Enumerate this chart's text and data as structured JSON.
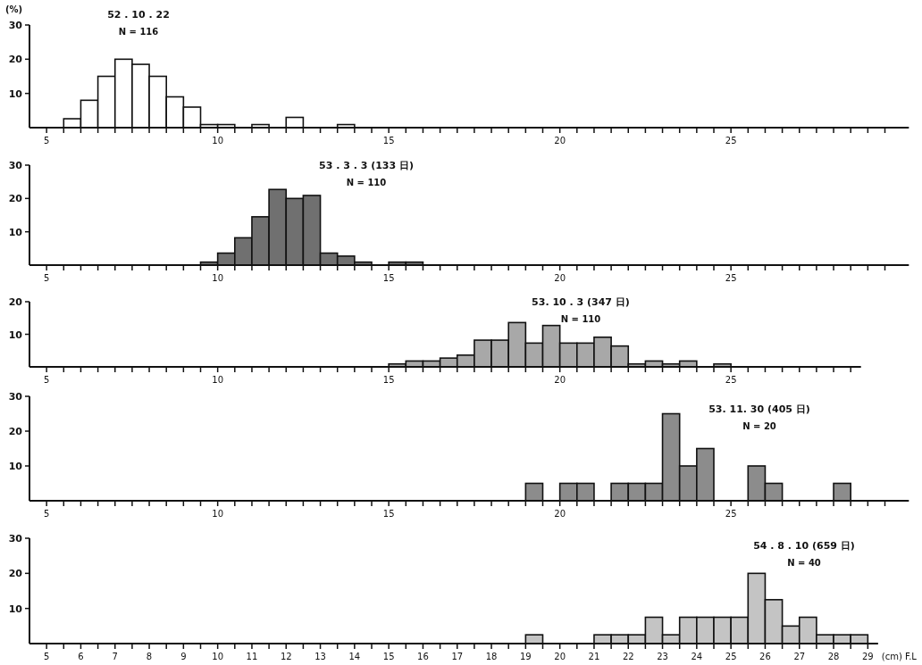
{
  "chart_data": [
    {
      "type": "histogram",
      "title": "52 . 10 . 22",
      "subtitle": "N = 116",
      "ylabel": "(%)",
      "color": "#ffffff",
      "bins": [
        5.5,
        6,
        6.5,
        7,
        7.5,
        8,
        8.5,
        9,
        9.5,
        10,
        10.5,
        11,
        11.5,
        12,
        12.5,
        13.5,
        14
      ],
      "values": [
        2.6,
        8,
        15,
        20,
        18.5,
        15,
        9,
        6,
        0.9,
        0.9,
        0,
        0.9,
        0,
        3,
        0,
        0.9
      ],
      "xlim": [
        4.5,
        30.2
      ],
      "ylim": [
        0,
        30
      ],
      "yticks": [
        10,
        20,
        30
      ],
      "xticks": [
        5,
        {
          "value": 5.5,
          "label": null
        },
        {
          "value": 6,
          "label": null
        },
        {
          "value": 6.5,
          "label": null
        },
        {
          "value": 7,
          "label": null
        },
        {
          "value": 7.5,
          "label": null
        },
        {
          "value": 8,
          "label": null
        },
        {
          "value": 8.5,
          "label": null
        },
        {
          "value": 9,
          "label": null
        },
        {
          "value": 9.5,
          "label": null
        },
        10,
        {
          "value": 10.5,
          "label": null
        },
        {
          "value": 11,
          "label": null
        },
        {
          "value": 11.5,
          "label": null
        },
        {
          "value": 12,
          "label": null
        },
        {
          "value": 12.5,
          "label": null
        },
        {
          "value": 13,
          "label": null
        },
        {
          "value": 13.5,
          "label": null
        },
        {
          "value": 14,
          "label": null
        },
        {
          "value": 14.5,
          "label": null
        },
        15,
        {
          "value": 15.5,
          "label": null
        },
        {
          "value": 16,
          "label": null
        },
        {
          "value": 16.5,
          "label": null
        },
        {
          "value": 17,
          "label": null
        },
        {
          "value": 17.5,
          "label": null
        },
        {
          "value": 18,
          "label": null
        },
        {
          "value": 18.5,
          "label": null
        },
        {
          "value": 19,
          "label": null
        },
        {
          "value": 19.5,
          "label": null
        },
        20,
        {
          "value": 20.5,
          "label": null
        },
        {
          "value": 21,
          "label": null
        },
        {
          "value": 21.5,
          "label": null
        },
        {
          "value": 22,
          "label": null
        },
        {
          "value": 22.5,
          "label": null
        },
        {
          "value": 23,
          "label": null
        },
        {
          "value": 23.5,
          "label": null
        },
        {
          "value": 24,
          "label": null
        },
        {
          "value": 24.5,
          "label": null
        },
        25,
        {
          "value": 25.5,
          "label": null
        },
        {
          "value": 26,
          "label": null
        },
        {
          "value": 26.5,
          "label": null
        },
        {
          "value": 27,
          "label": null
        },
        {
          "value": 27.5,
          "label": null
        },
        {
          "value": 28,
          "label": null
        },
        {
          "value": 28.5,
          "label": null
        },
        {
          "value": 29,
          "label": null
        },
        {
          "value": 29.5,
          "label": null
        }
      ]
    },
    {
      "type": "histogram",
      "title": "53 . 3 . 3 (133 日)",
      "subtitle": "N = 110",
      "color": "#707070",
      "bins": [
        9.5,
        10,
        10.5,
        11,
        11.5,
        12,
        12.5,
        13,
        13.5,
        14,
        14.5,
        15,
        15.5,
        16
      ],
      "values": [
        0.9,
        3.6,
        8.2,
        14.5,
        22.7,
        20,
        20.9,
        3.6,
        2.7,
        0.9,
        0,
        0.9,
        0.9
      ],
      "xlim": [
        4.5,
        30.2
      ],
      "ylim": [
        0,
        30
      ],
      "yticks": [
        10,
        20,
        30
      ],
      "xticks": [
        5,
        {
          "value": 5.5,
          "label": null
        },
        {
          "value": 6,
          "label": null
        },
        {
          "value": 6.5,
          "label": null
        },
        {
          "value": 7,
          "label": null
        },
        {
          "value": 7.5,
          "label": null
        },
        {
          "value": 8,
          "label": null
        },
        {
          "value": 8.5,
          "label": null
        },
        {
          "value": 9,
          "label": null
        },
        {
          "value": 9.5,
          "label": null
        },
        10,
        {
          "value": 10.5,
          "label": null
        },
        {
          "value": 11,
          "label": null
        },
        {
          "value": 11.5,
          "label": null
        },
        {
          "value": 12,
          "label": null
        },
        {
          "value": 12.5,
          "label": null
        },
        {
          "value": 13,
          "label": null
        },
        {
          "value": 13.5,
          "label": null
        },
        {
          "value": 14,
          "label": null
        },
        {
          "value": 14.5,
          "label": null
        },
        15,
        {
          "value": 15.5,
          "label": null
        },
        {
          "value": 16,
          "label": null
        },
        {
          "value": 16.5,
          "label": null
        },
        {
          "value": 17,
          "label": null
        },
        {
          "value": 17.5,
          "label": null
        },
        {
          "value": 18,
          "label": null
        },
        {
          "value": 18.5,
          "label": null
        },
        {
          "value": 19,
          "label": null
        },
        {
          "value": 19.5,
          "label": null
        },
        20,
        {
          "value": 20.5,
          "label": null
        },
        {
          "value": 21,
          "label": null
        },
        {
          "value": 21.5,
          "label": null
        },
        {
          "value": 22,
          "label": null
        },
        {
          "value": 22.5,
          "label": null
        },
        {
          "value": 23,
          "label": null
        },
        {
          "value": 23.5,
          "label": null
        },
        {
          "value": 24,
          "label": null
        },
        {
          "value": 24.5,
          "label": null
        },
        25,
        {
          "value": 25.5,
          "label": null
        },
        {
          "value": 26,
          "label": null
        },
        {
          "value": 26.5,
          "label": null
        },
        {
          "value": 27,
          "label": null
        },
        {
          "value": 27.5,
          "label": null
        },
        {
          "value": 28,
          "label": null
        },
        {
          "value": 28.5,
          "label": null
        },
        {
          "value": 29,
          "label": null
        },
        {
          "value": 29.5,
          "label": null
        }
      ]
    },
    {
      "type": "histogram",
      "title": "53. 10 . 3 (347 日)",
      "subtitle": "N = 110",
      "color": "#a8a8a8",
      "bins": [
        15,
        15.5,
        16,
        16.5,
        17,
        17.5,
        18,
        18.5,
        19,
        19.5,
        20,
        20.5,
        21,
        21.5,
        22,
        22.5,
        23,
        23.5,
        24,
        24.5,
        25
      ],
      "values": [
        0.9,
        1.8,
        1.8,
        2.7,
        3.6,
        8.2,
        8.2,
        13.6,
        7.3,
        12.7,
        7.3,
        7.3,
        9.1,
        6.4,
        0.9,
        1.8,
        0.9,
        1.8,
        0,
        0.9
      ],
      "xlim": [
        4.5,
        28.8
      ],
      "ylim": [
        0,
        20
      ],
      "yticks": [
        10,
        20
      ],
      "xticks": [
        5,
        {
          "value": 5.5,
          "label": null
        },
        {
          "value": 6,
          "label": null
        },
        {
          "value": 6.5,
          "label": null
        },
        {
          "value": 7,
          "label": null
        },
        {
          "value": 7.5,
          "label": null
        },
        {
          "value": 8,
          "label": null
        },
        {
          "value": 8.5,
          "label": null
        },
        {
          "value": 9,
          "label": null
        },
        {
          "value": 9.5,
          "label": null
        },
        10,
        {
          "value": 10.5,
          "label": null
        },
        {
          "value": 11,
          "label": null
        },
        {
          "value": 11.5,
          "label": null
        },
        {
          "value": 12,
          "label": null
        },
        {
          "value": 12.5,
          "label": null
        },
        {
          "value": 13,
          "label": null
        },
        {
          "value": 13.5,
          "label": null
        },
        {
          "value": 14,
          "label": null
        },
        {
          "value": 14.5,
          "label": null
        },
        15,
        {
          "value": 15.5,
          "label": null
        },
        {
          "value": 16,
          "label": null
        },
        {
          "value": 16.5,
          "label": null
        },
        {
          "value": 17,
          "label": null
        },
        {
          "value": 17.5,
          "label": null
        },
        {
          "value": 18,
          "label": null
        },
        {
          "value": 18.5,
          "label": null
        },
        {
          "value": 19,
          "label": null
        },
        {
          "value": 19.5,
          "label": null
        },
        20,
        {
          "value": 20.5,
          "label": null
        },
        {
          "value": 21,
          "label": null
        },
        {
          "value": 21.5,
          "label": null
        },
        {
          "value": 22,
          "label": null
        },
        {
          "value": 22.5,
          "label": null
        },
        {
          "value": 23,
          "label": null
        },
        {
          "value": 23.5,
          "label": null
        },
        {
          "value": 24,
          "label": null
        },
        {
          "value": 24.5,
          "label": null
        },
        25,
        {
          "value": 25.5,
          "label": null
        },
        {
          "value": 26,
          "label": null
        },
        {
          "value": 26.5,
          "label": null
        },
        {
          "value": 27,
          "label": null
        },
        {
          "value": 27.5,
          "label": null
        },
        {
          "value": 28,
          "label": null
        },
        {
          "value": 28.5,
          "label": null
        }
      ]
    },
    {
      "type": "histogram",
      "title": "53. 11. 30 (405 日)",
      "subtitle": "N = 20",
      "color": "#8c8c8c",
      "bins": [
        19,
        19.5,
        20,
        20.5,
        21,
        21.5,
        22,
        22.5,
        23,
        23.5,
        24,
        24.5,
        25.5,
        26,
        26.5,
        28,
        28.5
      ],
      "values": [
        5,
        0,
        5,
        5,
        0,
        5,
        5,
        5,
        25,
        10,
        15,
        0,
        10,
        5,
        0,
        5
      ],
      "xlim": [
        4.5,
        30.2
      ],
      "ylim": [
        0,
        30
      ],
      "yticks": [
        10,
        20,
        30
      ],
      "xticks": [
        5,
        {
          "value": 5.5,
          "label": null
        },
        {
          "value": 6,
          "label": null
        },
        {
          "value": 6.5,
          "label": null
        },
        {
          "value": 7,
          "label": null
        },
        {
          "value": 7.5,
          "label": null
        },
        {
          "value": 8,
          "label": null
        },
        {
          "value": 8.5,
          "label": null
        },
        {
          "value": 9,
          "label": null
        },
        {
          "value": 9.5,
          "label": null
        },
        10,
        {
          "value": 10.5,
          "label": null
        },
        {
          "value": 11,
          "label": null
        },
        {
          "value": 11.5,
          "label": null
        },
        {
          "value": 12,
          "label": null
        },
        {
          "value": 12.5,
          "label": null
        },
        {
          "value": 13,
          "label": null
        },
        {
          "value": 13.5,
          "label": null
        },
        {
          "value": 14,
          "label": null
        },
        {
          "value": 14.5,
          "label": null
        },
        15,
        {
          "value": 15.5,
          "label": null
        },
        {
          "value": 16,
          "label": null
        },
        {
          "value": 16.5,
          "label": null
        },
        {
          "value": 17,
          "label": null
        },
        {
          "value": 17.5,
          "label": null
        },
        {
          "value": 18,
          "label": null
        },
        {
          "value": 18.5,
          "label": null
        },
        {
          "value": 19,
          "label": null
        },
        {
          "value": 19.5,
          "label": null
        },
        20,
        {
          "value": 20.5,
          "label": null
        },
        {
          "value": 21,
          "label": null
        },
        {
          "value": 21.5,
          "label": null
        },
        {
          "value": 22,
          "label": null
        },
        {
          "value": 22.5,
          "label": null
        },
        {
          "value": 23,
          "label": null
        },
        {
          "value": 23.5,
          "label": null
        },
        {
          "value": 24,
          "label": null
        },
        {
          "value": 24.5,
          "label": null
        },
        25,
        {
          "value": 25.5,
          "label": null
        },
        {
          "value": 26,
          "label": null
        },
        {
          "value": 26.5,
          "label": null
        },
        {
          "value": 27,
          "label": null
        },
        {
          "value": 27.5,
          "label": null
        },
        {
          "value": 28,
          "label": null
        },
        {
          "value": 28.5,
          "label": null
        },
        {
          "value": 29,
          "label": null
        },
        {
          "value": 29.5,
          "label": null
        }
      ]
    },
    {
      "type": "histogram",
      "title": "54 . 8 . 10 (659 日)",
      "subtitle": "N = 40",
      "xlabel": "(cm) F.L",
      "color": "#c4c4c4",
      "bins": [
        19,
        19.5,
        21,
        21.5,
        22,
        22.5,
        23,
        23.5,
        24,
        24.5,
        25,
        25.5,
        26,
        26.5,
        27,
        27.5,
        28,
        28.5,
        29
      ],
      "values": [
        2.5,
        0,
        2.5,
        2.5,
        2.5,
        7.5,
        2.5,
        7.5,
        7.5,
        7.5,
        7.5,
        20,
        12.5,
        5,
        7.5,
        2.5,
        2.5,
        2.5
      ],
      "xlim": [
        4.5,
        29.3
      ],
      "ylim": [
        0,
        30
      ],
      "yticks": [
        10,
        20,
        30
      ],
      "xticks": [
        5,
        {
          "value": 5.5,
          "label": null
        },
        6,
        {
          "value": 6.5,
          "label": null
        },
        7,
        {
          "value": 7.5,
          "label": null
        },
        8,
        {
          "value": 8.5,
          "label": null
        },
        9,
        {
          "value": 9.5,
          "label": null
        },
        10,
        {
          "value": 10.5,
          "label": null
        },
        11,
        {
          "value": 11.5,
          "label": null
        },
        12,
        {
          "value": 12.5,
          "label": null
        },
        13,
        {
          "value": 13.5,
          "label": null
        },
        14,
        {
          "value": 14.5,
          "label": null
        },
        15,
        {
          "value": 15.5,
          "label": null
        },
        16,
        {
          "value": 16.5,
          "label": null
        },
        17,
        {
          "value": 17.5,
          "label": null
        },
        18,
        {
          "value": 18.5,
          "label": null
        },
        19,
        {
          "value": 19.5,
          "label": null
        },
        20,
        {
          "value": 20.5,
          "label": null
        },
        21,
        {
          "value": 21.5,
          "label": null
        },
        22,
        {
          "value": 22.5,
          "label": null
        },
        23,
        {
          "value": 23.5,
          "label": null
        },
        24,
        {
          "value": 24.5,
          "label": null
        },
        25,
        {
          "value": 25.5,
          "label": null
        },
        26,
        {
          "value": 26.5,
          "label": null
        },
        27,
        {
          "value": 27.5,
          "label": null
        },
        28,
        {
          "value": 28.5,
          "label": null
        },
        29
      ]
    }
  ]
}
